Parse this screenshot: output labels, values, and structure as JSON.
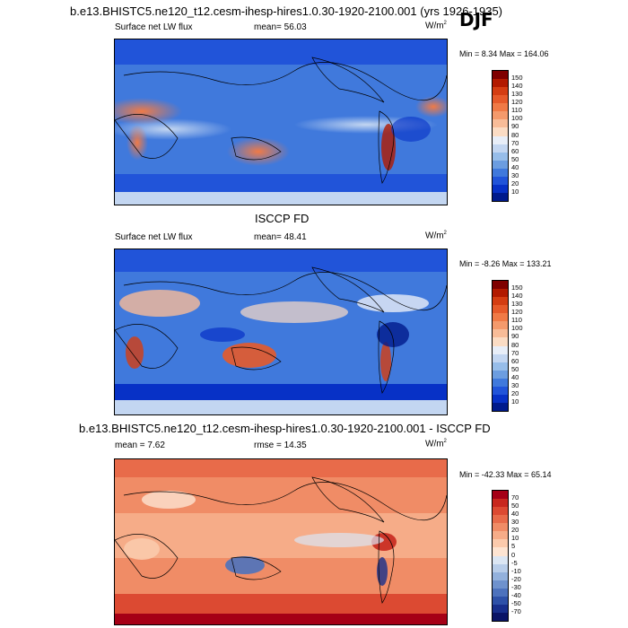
{
  "season": "DJF",
  "chart_data": [
    {
      "type": "heatmap",
      "title": "b.e13.BHISTC5.ne120_t12.cesm-ihesp-hires1.0.30-1920-2100.001 (yrs 1926-1935)",
      "left_label": "Surface net LW flux",
      "stat_label": "mean=  56.03",
      "units": "W/m",
      "units_sup": "2",
      "minmax": "Min =   8.34 Max = 164.06",
      "levels": [
        "150",
        "140",
        "130",
        "120",
        "110",
        "100",
        "90",
        "80",
        "70",
        "60",
        "50",
        "40",
        "30",
        "20",
        "10"
      ],
      "colors": [
        "#7f0000",
        "#b21a00",
        "#d43d12",
        "#e65a2a",
        "#f07a46",
        "#f49a6c",
        "#f8bc98",
        "#fbdcc4",
        "#e8eef8",
        "#c3d6f1",
        "#97bde9",
        "#6c9de0",
        "#4079dc",
        "#2154d9",
        "#0731c6",
        "#001a8c"
      ]
    },
    {
      "type": "heatmap",
      "title": "ISCCP FD",
      "left_label": "Surface net LW flux",
      "stat_label": "mean=  48.41",
      "units": "W/m",
      "units_sup": "2",
      "minmax": "Min =  -8.26 Max = 133.21",
      "levels": [
        "150",
        "140",
        "130",
        "120",
        "110",
        "100",
        "90",
        "80",
        "70",
        "60",
        "50",
        "40",
        "30",
        "20",
        "10"
      ],
      "colors": [
        "#7f0000",
        "#b21a00",
        "#d43d12",
        "#e65a2a",
        "#f07a46",
        "#f49a6c",
        "#f8bc98",
        "#fbdcc4",
        "#e8eef8",
        "#c3d6f1",
        "#97bde9",
        "#6c9de0",
        "#4079dc",
        "#2154d9",
        "#0731c6",
        "#001a8c"
      ]
    },
    {
      "type": "heatmap",
      "title": "b.e13.BHISTC5.ne120_t12.cesm-ihesp-hires1.0.30-1920-2100.001 - ISCCP FD",
      "left_label": "mean =   7.62",
      "stat_label": "rmse =  14.35",
      "units": "W/m",
      "units_sup": "2",
      "minmax": "Min = -42.33 Max =  65.14",
      "levels": [
        "70",
        "50",
        "40",
        "30",
        "20",
        "10",
        "5",
        "0",
        "-5",
        "-10",
        "-20",
        "-30",
        "-40",
        "-50",
        "-70"
      ],
      "colors": [
        "#a50016",
        "#c8281e",
        "#dc4a32",
        "#e86b4a",
        "#f08c66",
        "#f6ac88",
        "#fbcaac",
        "#fde4d2",
        "#dbe6f3",
        "#b8cde9",
        "#93b1dc",
        "#6f92cd",
        "#4d72bd",
        "#2e51a8",
        "#182f8c",
        "#0a1466"
      ]
    }
  ]
}
